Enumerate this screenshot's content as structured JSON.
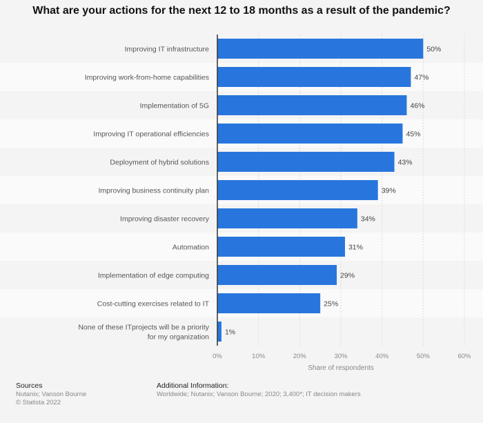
{
  "chart_data": {
    "type": "bar",
    "orientation": "horizontal",
    "title": "What are your actions for the next 12 to 18 months as a result of the pandemic?",
    "categories": [
      "Improving IT infrastructure",
      "Improving work-from-home capabilities",
      "Implementation of 5G",
      "Improving IT operational efficiencies",
      "Deployment of hybrid solutions",
      "Improving business continuity plan",
      "Improving disaster recovery",
      "Automation",
      "Implementation of edge computing",
      "Cost-cutting exercises related to IT",
      "None of these ITprojects will be a priority for my organization"
    ],
    "values": [
      50,
      47,
      46,
      45,
      43,
      39,
      34,
      31,
      29,
      25,
      1
    ],
    "data_labels": [
      "50%",
      "47%",
      "46%",
      "45%",
      "43%",
      "39%",
      "34%",
      "31%",
      "29%",
      "25%",
      "1%"
    ],
    "xlabel": "Share of respondents",
    "ylabel": "",
    "xlim": [
      0,
      60
    ],
    "x_ticks": [
      "0%",
      "10%",
      "20%",
      "30%",
      "40%",
      "50%",
      "60%"
    ],
    "grid": true,
    "bar_color": "#2876dd"
  },
  "footer": {
    "sources_heading": "Sources",
    "sources": "Nutanix; Vanson Bourne",
    "copyright": "© Statista 2022",
    "additional_heading": "Additional Information:",
    "additional": "Worldwide; Nutanix; Vanson Bourne; 2020; 3,400*; IT decision makers"
  }
}
